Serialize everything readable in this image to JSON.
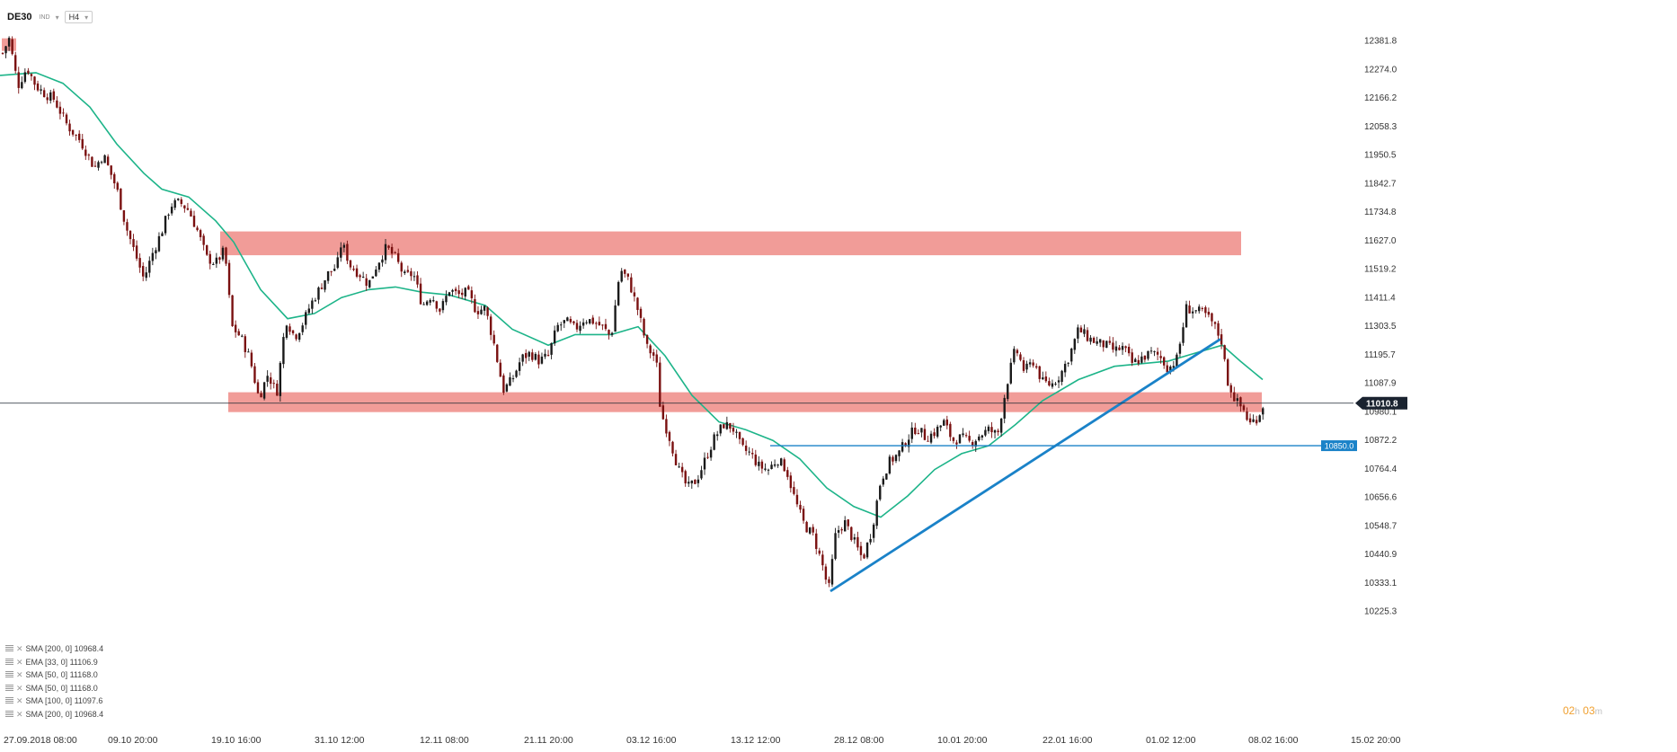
{
  "header": {
    "symbol": "DE30",
    "symbol_sub": "IND",
    "timeframe": "H4"
  },
  "indicators": [
    "SMA [200, 0] 10968.4",
    "EMA [33, 0] 11106.9",
    "SMA [50, 0] 11168.0",
    "SMA [50, 0] 11168.0",
    "SMA [100, 0] 11097.6",
    "SMA [200, 0] 10968.4"
  ],
  "countdown": {
    "hours": "02",
    "h_unit": "h",
    "minutes": "03",
    "m_unit": "m"
  },
  "colors": {
    "bull": "#1a1a1a",
    "bear": "#7a1010",
    "ma": "#1db489",
    "zone": "#ef8b86",
    "trend": "#1a82c8",
    "support": "#1a82c8",
    "price_tag": "#1a2330"
  },
  "chart_data": {
    "type": "candlestick",
    "symbol": "DE30",
    "timeframe": "H4",
    "ylim": [
      10225.3,
      12433.0
    ],
    "y_ticks": [
      12381.8,
      12274.0,
      12166.2,
      12058.3,
      11950.5,
      11842.7,
      11734.8,
      11627.0,
      11519.2,
      11411.4,
      11303.5,
      11195.7,
      11087.9,
      10980.1,
      10872.2,
      10764.4,
      10656.6,
      10548.7,
      10440.9,
      10333.1,
      10225.3
    ],
    "x_labels": [
      "27.09.2018 08:00",
      "09.10 20:00",
      "19.10 16:00",
      "31.10 12:00",
      "12.11 08:00",
      "21.11 20:00",
      "03.12 16:00",
      "13.12 12:00",
      "28.12 08:00",
      "10.01 20:00",
      "22.01 16:00",
      "01.02 12:00",
      "08.02 16:00",
      "15.02 20:00"
    ],
    "last_price": 11010.8,
    "support_level": 10850.0,
    "support_label": "10850.0",
    "resistance_zones": [
      {
        "from": 11570,
        "to": 11660
      },
      {
        "from": 10977,
        "to": 11052
      }
    ],
    "trendline": [
      [
        10300,
        11253
      ]
    ],
    "path": [
      [
        0,
        12310
      ],
      [
        10,
        12390
      ],
      [
        20,
        12210
      ],
      [
        30,
        12280
      ],
      [
        40,
        12210
      ],
      [
        50,
        12180
      ],
      [
        60,
        12160
      ],
      [
        75,
        12060
      ],
      [
        90,
        12000
      ],
      [
        105,
        11900
      ],
      [
        115,
        11950
      ],
      [
        130,
        11820
      ],
      [
        140,
        11680
      ],
      [
        150,
        11580
      ],
      [
        160,
        11480
      ],
      [
        170,
        11580
      ],
      [
        180,
        11660
      ],
      [
        190,
        11760
      ],
      [
        200,
        11770
      ],
      [
        210,
        11740
      ],
      [
        220,
        11660
      ],
      [
        230,
        11560
      ],
      [
        240,
        11540
      ],
      [
        250,
        11590
      ],
      [
        258,
        11300
      ],
      [
        268,
        11260
      ],
      [
        278,
        11180
      ],
      [
        288,
        11030
      ],
      [
        298,
        11120
      ],
      [
        308,
        11050
      ],
      [
        318,
        11330
      ],
      [
        328,
        11260
      ],
      [
        338,
        11320
      ],
      [
        345,
        11380
      ],
      [
        355,
        11440
      ],
      [
        365,
        11500
      ],
      [
        375,
        11530
      ],
      [
        380,
        11620
      ],
      [
        390,
        11530
      ],
      [
        400,
        11500
      ],
      [
        410,
        11460
      ],
      [
        420,
        11540
      ],
      [
        430,
        11600
      ],
      [
        440,
        11560
      ],
      [
        450,
        11490
      ],
      [
        460,
        11500
      ],
      [
        470,
        11380
      ],
      [
        480,
        11420
      ],
      [
        490,
        11360
      ],
      [
        500,
        11440
      ],
      [
        510,
        11420
      ],
      [
        520,
        11430
      ],
      [
        530,
        11360
      ],
      [
        540,
        11370
      ],
      [
        550,
        11230
      ],
      [
        560,
        11060
      ],
      [
        570,
        11100
      ],
      [
        580,
        11180
      ],
      [
        590,
        11200
      ],
      [
        600,
        11170
      ],
      [
        610,
        11190
      ],
      [
        620,
        11300
      ],
      [
        630,
        11320
      ],
      [
        640,
        11290
      ],
      [
        650,
        11330
      ],
      [
        660,
        11320
      ],
      [
        670,
        11300
      ],
      [
        680,
        11260
      ],
      [
        690,
        11520
      ],
      [
        700,
        11470
      ],
      [
        710,
        11360
      ],
      [
        720,
        11220
      ],
      [
        730,
        11180
      ],
      [
        735,
        10980
      ],
      [
        745,
        10880
      ],
      [
        755,
        10760
      ],
      [
        765,
        10690
      ],
      [
        775,
        10720
      ],
      [
        785,
        10800
      ],
      [
        795,
        10880
      ],
      [
        805,
        10930
      ],
      [
        815,
        10920
      ],
      [
        825,
        10840
      ],
      [
        835,
        10820
      ],
      [
        845,
        10770
      ],
      [
        855,
        10760
      ],
      [
        865,
        10800
      ],
      [
        875,
        10760
      ],
      [
        885,
        10640
      ],
      [
        895,
        10550
      ],
      [
        905,
        10510
      ],
      [
        915,
        10400
      ],
      [
        922,
        10300
      ],
      [
        930,
        10520
      ],
      [
        940,
        10560
      ],
      [
        950,
        10490
      ],
      [
        960,
        10420
      ],
      [
        970,
        10530
      ],
      [
        980,
        10720
      ],
      [
        990,
        10790
      ],
      [
        1000,
        10820
      ],
      [
        1010,
        10880
      ],
      [
        1020,
        10920
      ],
      [
        1030,
        10880
      ],
      [
        1040,
        10900
      ],
      [
        1050,
        10940
      ],
      [
        1060,
        10870
      ],
      [
        1070,
        10880
      ],
      [
        1080,
        10860
      ],
      [
        1090,
        10890
      ],
      [
        1100,
        10910
      ],
      [
        1110,
        10890
      ],
      [
        1120,
        11080
      ],
      [
        1130,
        11220
      ],
      [
        1140,
        11130
      ],
      [
        1150,
        11170
      ],
      [
        1160,
        11090
      ],
      [
        1170,
        11080
      ],
      [
        1180,
        11120
      ],
      [
        1190,
        11190
      ],
      [
        1200,
        11290
      ],
      [
        1210,
        11260
      ],
      [
        1220,
        11240
      ],
      [
        1230,
        11230
      ],
      [
        1240,
        11210
      ],
      [
        1250,
        11220
      ],
      [
        1260,
        11160
      ],
      [
        1270,
        11180
      ],
      [
        1280,
        11200
      ],
      [
        1290,
        11190
      ],
      [
        1300,
        11140
      ],
      [
        1310,
        11180
      ],
      [
        1320,
        11370
      ],
      [
        1330,
        11360
      ],
      [
        1340,
        11350
      ],
      [
        1350,
        11310
      ],
      [
        1360,
        11240
      ],
      [
        1365,
        11100
      ],
      [
        1375,
        11020
      ],
      [
        1385,
        10980
      ],
      [
        1390,
        10930
      ],
      [
        1400,
        10960
      ],
      [
        1406,
        11010
      ]
    ],
    "ma_line": [
      [
        0,
        12250
      ],
      [
        40,
        12260
      ],
      [
        70,
        12220
      ],
      [
        100,
        12130
      ],
      [
        130,
        11990
      ],
      [
        160,
        11880
      ],
      [
        180,
        11820
      ],
      [
        210,
        11790
      ],
      [
        240,
        11700
      ],
      [
        260,
        11620
      ],
      [
        290,
        11440
      ],
      [
        320,
        11330
      ],
      [
        350,
        11350
      ],
      [
        380,
        11410
      ],
      [
        410,
        11440
      ],
      [
        440,
        11450
      ],
      [
        470,
        11430
      ],
      [
        500,
        11420
      ],
      [
        540,
        11380
      ],
      [
        570,
        11290
      ],
      [
        610,
        11230
      ],
      [
        640,
        11270
      ],
      [
        680,
        11270
      ],
      [
        710,
        11300
      ],
      [
        740,
        11190
      ],
      [
        770,
        11040
      ],
      [
        800,
        10940
      ],
      [
        830,
        10910
      ],
      [
        860,
        10870
      ],
      [
        890,
        10800
      ],
      [
        920,
        10690
      ],
      [
        950,
        10620
      ],
      [
        980,
        10580
      ],
      [
        1010,
        10660
      ],
      [
        1040,
        10760
      ],
      [
        1070,
        10820
      ],
      [
        1100,
        10850
      ],
      [
        1130,
        10930
      ],
      [
        1160,
        11020
      ],
      [
        1200,
        11100
      ],
      [
        1240,
        11150
      ],
      [
        1270,
        11160
      ],
      [
        1300,
        11170
      ],
      [
        1330,
        11200
      ],
      [
        1360,
        11230
      ],
      [
        1380,
        11170
      ],
      [
        1405,
        11100
      ]
    ]
  }
}
